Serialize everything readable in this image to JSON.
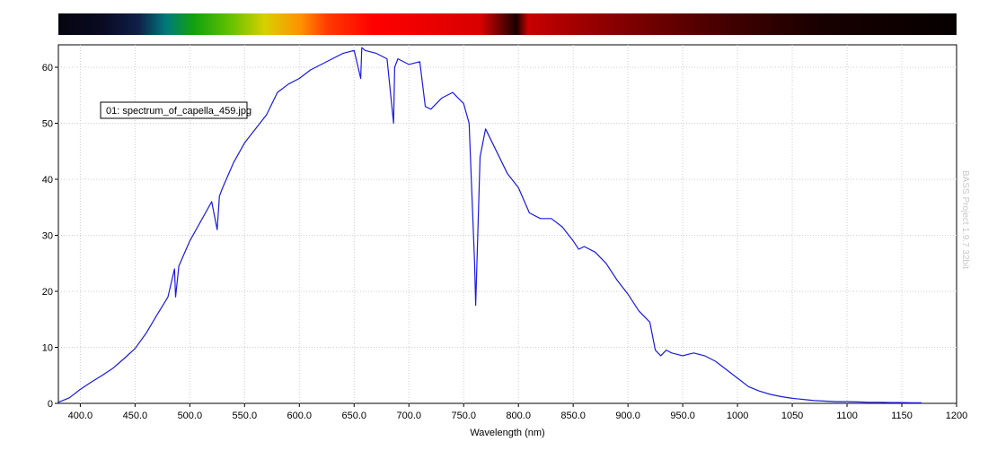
{
  "chart_data": {
    "type": "line",
    "xlabel": "Wavelength (nm)",
    "ylabel": "",
    "xlim": [
      380,
      1200
    ],
    "ylim": [
      0,
      64
    ],
    "grid": true,
    "x_ticks": [
      {
        "value": 400,
        "label": "400.0"
      },
      {
        "value": 450,
        "label": "450.0"
      },
      {
        "value": 500,
        "label": "500.0"
      },
      {
        "value": 550,
        "label": "550.0"
      },
      {
        "value": 600,
        "label": "600.0"
      },
      {
        "value": 650,
        "label": "650.0"
      },
      {
        "value": 700,
        "label": "700.0"
      },
      {
        "value": 750,
        "label": "750.0"
      },
      {
        "value": 800,
        "label": "800.0"
      },
      {
        "value": 850,
        "label": "850.0"
      },
      {
        "value": 900,
        "label": "900.0"
      },
      {
        "value": 950,
        "label": "950.0"
      },
      {
        "value": 1000,
        "label": "1000"
      },
      {
        "value": 1050,
        "label": "1050"
      },
      {
        "value": 1100,
        "label": "1100"
      },
      {
        "value": 1150,
        "label": "1150"
      },
      {
        "value": 1200,
        "label": "1200"
      }
    ],
    "y_ticks": [
      {
        "value": 0,
        "label": "0"
      },
      {
        "value": 10,
        "label": "10"
      },
      {
        "value": 20,
        "label": "20"
      },
      {
        "value": 30,
        "label": "30"
      },
      {
        "value": 40,
        "label": "40"
      },
      {
        "value": 50,
        "label": "50"
      },
      {
        "value": 60,
        "label": "60"
      }
    ],
    "legend": {
      "position": "top-left",
      "entries": [
        "01: spectrum_of_capella_459.jpg"
      ]
    },
    "series": [
      {
        "color": "#1a1ae0",
        "x": [
          380,
          390,
          400,
          410,
          420,
          430,
          440,
          450,
          460,
          470,
          480,
          486,
          487,
          490,
          500,
          510,
          520,
          525,
          527,
          530,
          540,
          550,
          560,
          570,
          580,
          590,
          600,
          610,
          620,
          630,
          640,
          650,
          656,
          657,
          660,
          670,
          680,
          686,
          687,
          690,
          700,
          710,
          715,
          720,
          730,
          740,
          750,
          755,
          760,
          761,
          765,
          770,
          780,
          790,
          800,
          810,
          820,
          830,
          840,
          850,
          855,
          860,
          870,
          880,
          890,
          900,
          910,
          920,
          925,
          930,
          935,
          940,
          950,
          960,
          970,
          980,
          990,
          1000,
          1010,
          1020,
          1030,
          1040,
          1050,
          1060,
          1070,
          1080,
          1090,
          1100,
          1110,
          1120,
          1130,
          1140,
          1150,
          1160,
          1168
        ],
        "y": [
          0.2,
          1.0,
          2.5,
          3.8,
          5.0,
          6.3,
          8.0,
          9.8,
          12.5,
          15.8,
          19.0,
          24.0,
          19.0,
          24.5,
          29.0,
          32.5,
          36.0,
          31.0,
          37.0,
          38.5,
          43.0,
          46.5,
          49.0,
          51.5,
          55.5,
          57.0,
          58.0,
          59.5,
          60.5,
          61.5,
          62.5,
          63.0,
          58.0,
          63.5,
          63.0,
          62.5,
          61.5,
          50.0,
          60.0,
          61.5,
          60.5,
          61.0,
          53.0,
          52.5,
          54.5,
          55.5,
          53.5,
          50.0,
          25.0,
          17.5,
          44.0,
          49.0,
          45.0,
          41.0,
          38.5,
          34.0,
          33.0,
          33.0,
          31.5,
          29.0,
          27.5,
          28.0,
          27.0,
          25.0,
          22.0,
          19.5,
          16.5,
          14.5,
          9.5,
          8.5,
          9.5,
          9.0,
          8.5,
          9.0,
          8.5,
          7.5,
          6.0,
          4.5,
          3.0,
          2.2,
          1.6,
          1.2,
          0.9,
          0.7,
          0.5,
          0.4,
          0.3,
          0.3,
          0.25,
          0.2,
          0.2,
          0.15,
          0.15,
          0.1,
          0.1
        ]
      }
    ]
  },
  "watermark": "BASS Project 1.9.7 32bit",
  "spectrum_bar": {
    "stops": [
      {
        "pos": 0.0,
        "color": "#050510"
      },
      {
        "pos": 0.05,
        "color": "#0a0a22"
      },
      {
        "pos": 0.09,
        "color": "#10204a"
      },
      {
        "pos": 0.12,
        "color": "#007a7a"
      },
      {
        "pos": 0.15,
        "color": "#10a010"
      },
      {
        "pos": 0.19,
        "color": "#60c000"
      },
      {
        "pos": 0.23,
        "color": "#d8d000"
      },
      {
        "pos": 0.27,
        "color": "#ff9000"
      },
      {
        "pos": 0.3,
        "color": "#ff3a00"
      },
      {
        "pos": 0.35,
        "color": "#ff0000"
      },
      {
        "pos": 0.42,
        "color": "#e80000"
      },
      {
        "pos": 0.47,
        "color": "#d80000"
      },
      {
        "pos": 0.51,
        "color": "#1a0000"
      },
      {
        "pos": 0.523,
        "color": "#c80000"
      },
      {
        "pos": 0.58,
        "color": "#a00000"
      },
      {
        "pos": 0.66,
        "color": "#700000"
      },
      {
        "pos": 0.75,
        "color": "#400000"
      },
      {
        "pos": 0.85,
        "color": "#180000"
      },
      {
        "pos": 1.0,
        "color": "#050000"
      }
    ]
  }
}
